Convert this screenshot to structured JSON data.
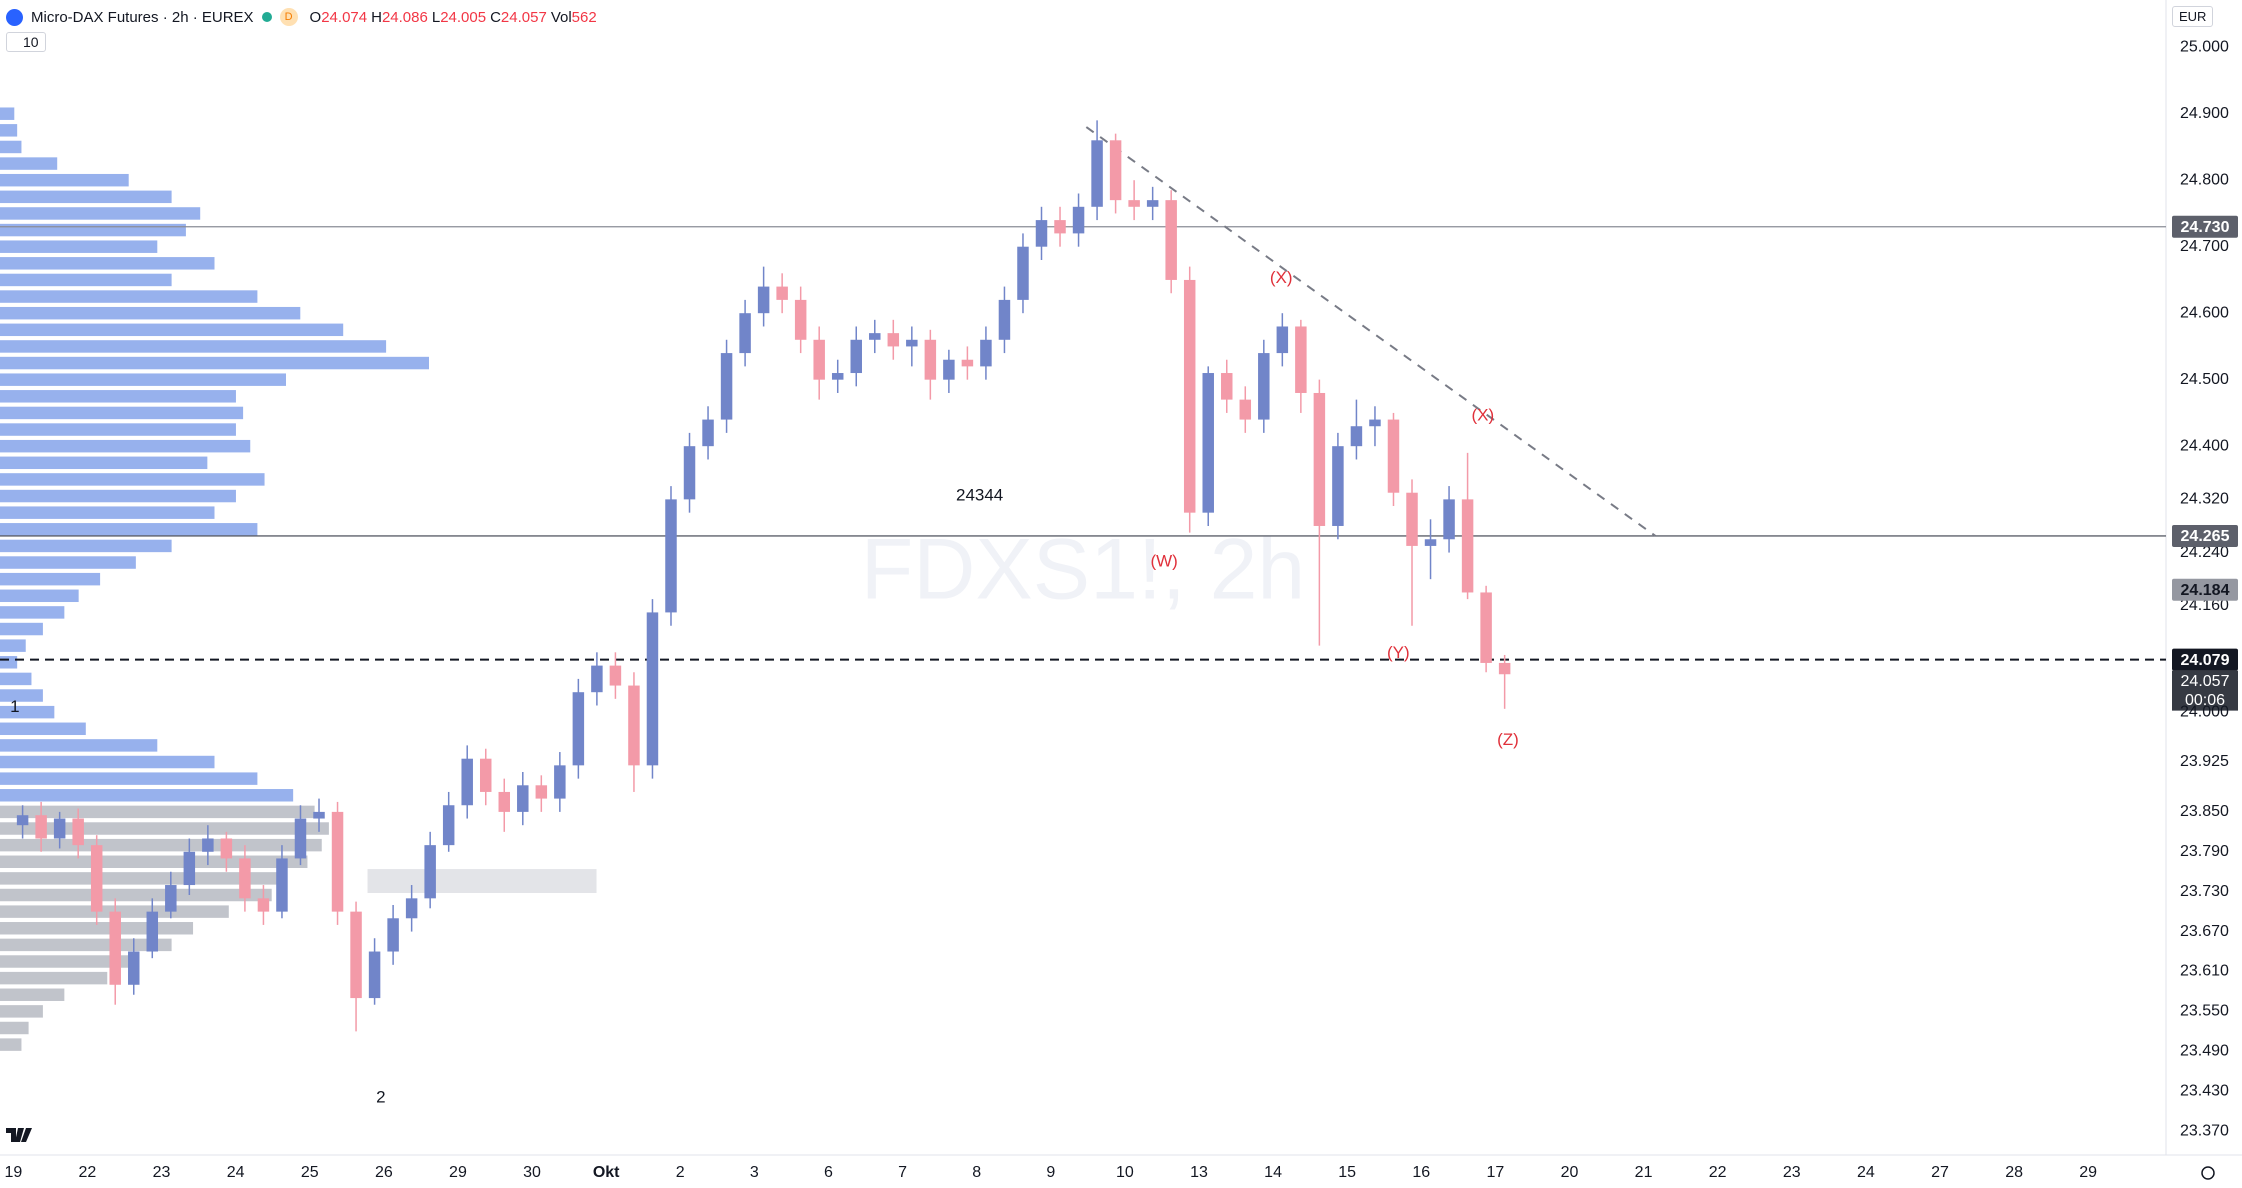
{
  "header": {
    "symbol": "Micro-DAX Futures · 2h · EUREX",
    "badge": "D",
    "ohlc": [
      {
        "key": "O",
        "value": "24.074"
      },
      {
        "key": "H",
        "value": "24.086"
      },
      {
        "key": "L",
        "value": "24.005"
      },
      {
        "key": "C",
        "value": "24.057"
      },
      {
        "key": "Vol",
        "value": "562"
      }
    ],
    "indicator": "10",
    "currency": "EUR"
  },
  "chart_data": {
    "type": "candlestick",
    "watermark": "FDXS1!, 2h",
    "up_color": "#7185c9",
    "down_color": "#f39aa8",
    "xlim": [
      -0.18,
      29.05
    ],
    "ylim": [
      23334,
      25071
    ],
    "xticks": [
      {
        "value": 0,
        "label": "19"
      },
      {
        "value": 1,
        "label": "22"
      },
      {
        "value": 2,
        "label": "23"
      },
      {
        "value": 3,
        "label": "24"
      },
      {
        "value": 4,
        "label": "25"
      },
      {
        "value": 5,
        "label": "26"
      },
      {
        "value": 6,
        "label": "29"
      },
      {
        "value": 7,
        "label": "30"
      },
      {
        "value": 8,
        "label": "Okt"
      },
      {
        "value": 9,
        "label": "2"
      },
      {
        "value": 10,
        "label": "3"
      },
      {
        "value": 11,
        "label": "6"
      },
      {
        "value": 12,
        "label": "7"
      },
      {
        "value": 13,
        "label": "8"
      },
      {
        "value": 14,
        "label": "9"
      },
      {
        "value": 15,
        "label": "10"
      },
      {
        "value": 16,
        "label": "13"
      },
      {
        "value": 17,
        "label": "14"
      },
      {
        "value": 18,
        "label": "15"
      },
      {
        "value": 19,
        "label": "16"
      },
      {
        "value": 20,
        "label": "17"
      },
      {
        "value": 21,
        "label": "20"
      },
      {
        "value": 22,
        "label": "21"
      },
      {
        "value": 23,
        "label": "22"
      },
      {
        "value": 24,
        "label": "23"
      },
      {
        "value": 25,
        "label": "24"
      },
      {
        "value": 26,
        "label": "27"
      },
      {
        "value": 27,
        "label": "28"
      },
      {
        "value": 28,
        "label": "29"
      }
    ],
    "yticks": [
      {
        "value": 25000,
        "label": "25.000"
      },
      {
        "value": 24900,
        "label": "24.900"
      },
      {
        "value": 24800,
        "label": "24.800"
      },
      {
        "value": 24700,
        "label": "24.700"
      },
      {
        "value": 24600,
        "label": "24.600"
      },
      {
        "value": 24500,
        "label": "24.500"
      },
      {
        "value": 24400,
        "label": "24.400"
      },
      {
        "value": 24320,
        "label": "24.320"
      },
      {
        "value": 24240,
        "label": "24.240"
      },
      {
        "value": 24160,
        "label": "24.160"
      },
      {
        "value": 24000,
        "label": "24.000"
      },
      {
        "value": 23925,
        "label": "23.925"
      },
      {
        "value": 23850,
        "label": "23.850"
      },
      {
        "value": 23790,
        "label": "23.790"
      },
      {
        "value": 23730,
        "label": "23.730"
      },
      {
        "value": 23670,
        "label": "23.670"
      },
      {
        "value": 23610,
        "label": "23.610"
      },
      {
        "value": 23550,
        "label": "23.550"
      },
      {
        "value": 23490,
        "label": "23.490"
      },
      {
        "value": 23430,
        "label": "23.430"
      },
      {
        "value": 23370,
        "label": "23.370"
      }
    ],
    "x": [
      0.125,
      0.375,
      0.625,
      0.875,
      1.125,
      1.375,
      1.625,
      1.875,
      2.125,
      2.375,
      2.625,
      2.875,
      3.125,
      3.375,
      3.625,
      3.875,
      4.125,
      4.375,
      4.625,
      4.875,
      5.125,
      5.375,
      5.625,
      5.875,
      6.125,
      6.375,
      6.625,
      6.875,
      7.125,
      7.375,
      7.625,
      7.875,
      8.125,
      8.375,
      8.625,
      8.875,
      9.125,
      9.375,
      9.625,
      9.875,
      10.125,
      10.375,
      10.625,
      10.875,
      11.125,
      11.375,
      11.625,
      11.875,
      12.125,
      12.375,
      12.625,
      12.875,
      13.125,
      13.375,
      13.625,
      13.875,
      14.125,
      14.375,
      14.625,
      14.875,
      15.125,
      15.375,
      15.625,
      15.875,
      16.125,
      16.375,
      16.625,
      16.875,
      17.125,
      17.375,
      17.625,
      17.875,
      18.125,
      18.375,
      18.625,
      18.875,
      19.125,
      19.375,
      19.625,
      19.875,
      20.125
    ],
    "open": [
      23830,
      23845,
      23810,
      23840,
      23800,
      23700,
      23590,
      23640,
      23700,
      23740,
      23790,
      23810,
      23780,
      23720,
      23700,
      23780,
      23840,
      23850,
      23700,
      23570,
      23640,
      23690,
      23720,
      23800,
      23860,
      23930,
      23880,
      23850,
      23890,
      23870,
      23920,
      24030,
      24070,
      24040,
      23920,
      24150,
      24320,
      24400,
      24440,
      24540,
      24600,
      24640,
      24620,
      24560,
      24500,
      24510,
      24560,
      24570,
      24550,
      24560,
      24500,
      24530,
      24520,
      24560,
      24620,
      24700,
      24740,
      24720,
      24760,
      24860,
      24770,
      24760,
      24770,
      24650,
      24300,
      24510,
      24470,
      24440,
      24540,
      24580,
      24480,
      24280,
      24400,
      24430,
      24440,
      24330,
      24250,
      24260,
      24320,
      24180,
      24074
    ],
    "high": [
      23860,
      23865,
      23850,
      23855,
      23815,
      23720,
      23660,
      23720,
      23760,
      23810,
      23830,
      23820,
      23800,
      23740,
      23800,
      23860,
      23870,
      23865,
      23715,
      23660,
      23710,
      23740,
      23820,
      23880,
      23950,
      23945,
      23900,
      23910,
      23905,
      23940,
      24050,
      24090,
      24090,
      24060,
      24170,
      24340,
      24420,
      24460,
      24560,
      24620,
      24670,
      24660,
      24640,
      24580,
      24530,
      24580,
      24590,
      24590,
      24580,
      24575,
      24545,
      24550,
      24580,
      24640,
      24720,
      24760,
      24760,
      24780,
      24890,
      24870,
      24800,
      24790,
      24785,
      24670,
      24520,
      24530,
      24490,
      24560,
      24600,
      24590,
      24500,
      24420,
      24470,
      24460,
      24450,
      24350,
      24290,
      24340,
      24390,
      24190,
      24086
    ],
    "low": [
      23810,
      23790,
      23795,
      23780,
      23680,
      23560,
      23575,
      23630,
      23690,
      23725,
      23770,
      23760,
      23700,
      23680,
      23690,
      23770,
      23820,
      23680,
      23520,
      23560,
      23620,
      23670,
      23705,
      23790,
      23840,
      23860,
      23820,
      23830,
      23850,
      23850,
      23900,
      24010,
      24020,
      23880,
      23900,
      24130,
      24300,
      24380,
      24420,
      24520,
      24580,
      24600,
      24540,
      24470,
      24480,
      24490,
      24540,
      24530,
      24520,
      24470,
      24480,
      24500,
      24500,
      24540,
      24600,
      24680,
      24700,
      24700,
      24740,
      24750,
      24740,
      24740,
      24630,
      24270,
      24280,
      24450,
      24420,
      24420,
      24520,
      24450,
      24100,
      24260,
      24380,
      24400,
      24310,
      24130,
      24200,
      24240,
      24170,
      24060,
      24005
    ],
    "close": [
      23845,
      23810,
      23840,
      23800,
      23700,
      23590,
      23640,
      23700,
      23740,
      23790,
      23810,
      23780,
      23720,
      23700,
      23780,
      23840,
      23850,
      23700,
      23570,
      23640,
      23690,
      23720,
      23800,
      23860,
      23930,
      23880,
      23850,
      23890,
      23870,
      23920,
      24030,
      24070,
      24040,
      23920,
      24150,
      24320,
      24400,
      24440,
      24540,
      24600,
      24640,
      24620,
      24560,
      24500,
      24510,
      24560,
      24570,
      24550,
      24560,
      24500,
      24530,
      24520,
      24560,
      24620,
      24700,
      24740,
      24720,
      24760,
      24860,
      24770,
      24760,
      24770,
      24650,
      24300,
      24510,
      24470,
      24440,
      24540,
      24580,
      24480,
      24280,
      24400,
      24430,
      24440,
      24330,
      24250,
      24260,
      24320,
      24180,
      24074,
      24057
    ],
    "volume_profile": [
      {
        "color": "#7d9ee8",
        "levels": [
          24900,
          24875,
          24850,
          24825,
          24800,
          24775,
          24750,
          24725,
          24700,
          24675,
          24650,
          24625,
          24600,
          24575,
          24550,
          24525,
          24500,
          24475,
          24450,
          24425,
          24400,
          24375,
          24350,
          24325,
          24300,
          24275,
          24250,
          24225,
          24200,
          24175,
          24150,
          24125,
          24100,
          24075,
          24050,
          24025,
          24000,
          23975,
          23950,
          23925,
          23900,
          23875
        ],
        "volumes": [
          10,
          12,
          15,
          40,
          90,
          120,
          140,
          130,
          110,
          150,
          120,
          180,
          210,
          240,
          270,
          300,
          200,
          165,
          170,
          165,
          175,
          145,
          185,
          165,
          150,
          180,
          120,
          95,
          70,
          55,
          45,
          30,
          18,
          12,
          22,
          30,
          38,
          60,
          110,
          150,
          180,
          205
        ]
      },
      {
        "color": "#b2b5be",
        "levels": [
          23850,
          23825,
          23800,
          23775,
          23750,
          23725,
          23700,
          23675,
          23650,
          23625,
          23600,
          23575,
          23550,
          23525,
          23500
        ],
        "volumes": [
          220,
          230,
          225,
          215,
          200,
          190,
          160,
          135,
          120,
          90,
          75,
          45,
          30,
          20,
          15
        ]
      }
    ],
    "hlines": [
      {
        "value": 24730,
        "label": "24.730",
        "style": "solid",
        "color": "#8a8d96",
        "label_bg": "#5d606b",
        "label_color": "#ffffff"
      },
      {
        "value": 24265,
        "label": "24.265",
        "style": "solid",
        "color": "#5d606b",
        "label_bg": "#5d606b",
        "label_color": "#ffffff"
      },
      {
        "value": 24184,
        "label": "24.184",
        "style": "none",
        "color": "#9598a1",
        "label_bg": "#9598a1",
        "label_color": "#131722"
      },
      {
        "value": 24079,
        "label": "24.079",
        "style": "dashed",
        "color": "#131722",
        "label_bg": "#131722",
        "label_color": "#ffffff"
      }
    ],
    "last_price": {
      "value": 24057,
      "label": "24.057",
      "countdown": "00:06"
    },
    "trendline": {
      "x": [
        14.48,
        22.16
      ],
      "y": [
        24880,
        24265
      ],
      "color": "#787b86"
    },
    "zone": {
      "x": [
        4.78,
        7.87
      ],
      "y": [
        23728,
        23764
      ],
      "color": "#e3e4e8"
    },
    "annotations": [
      {
        "text": "(W)",
        "x": 15.53,
        "y": 24226,
        "color": "#e0303a"
      },
      {
        "text": "(X)",
        "x": 17.11,
        "y": 24652,
        "color": "#e0303a"
      },
      {
        "text": "(X)",
        "x": 19.83,
        "y": 24445,
        "color": "#e0303a"
      },
      {
        "text": "(Y)",
        "x": 18.69,
        "y": 24088,
        "color": "#e0303a"
      },
      {
        "text": "(Z)",
        "x": 20.17,
        "y": 23957,
        "color": "#e0303a"
      },
      {
        "text": "24344",
        "x": 13.04,
        "y": 24325,
        "color": "#131722"
      },
      {
        "text": "1",
        "x": 0.02,
        "y": 24007,
        "color": "#131722"
      },
      {
        "text": "2",
        "x": 4.96,
        "y": 23420,
        "color": "#131722"
      }
    ]
  }
}
